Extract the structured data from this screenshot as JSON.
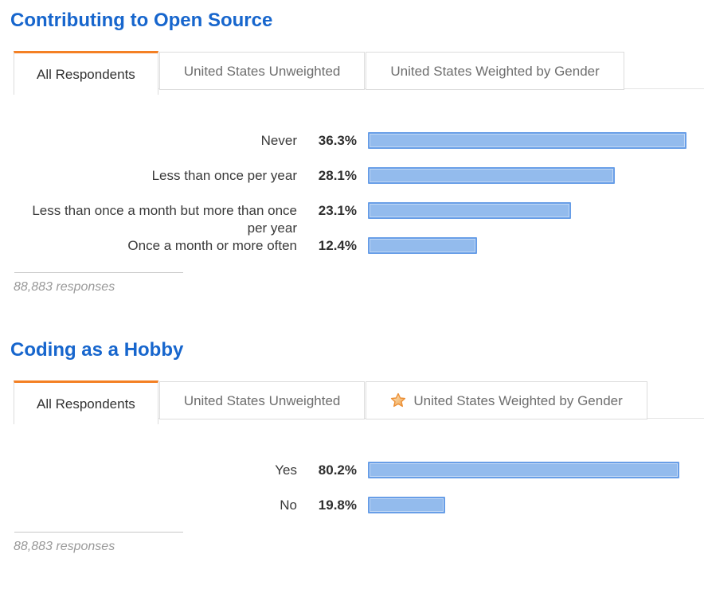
{
  "colors": {
    "heading_blue": "#1766cd",
    "tab_orange": "#f48024",
    "bar_fill": "#93bbed",
    "bar_border": "#689ee7"
  },
  "sections": [
    {
      "heading": "Contributing to Open Source",
      "tabs": [
        {
          "label": "All Respondents",
          "active": true
        },
        {
          "label": "United States Unweighted",
          "active": false
        },
        {
          "label": "United States Weighted by Gender",
          "active": false
        }
      ],
      "responses_note": "88,883 responses"
    },
    {
      "heading": "Coding as a Hobby",
      "tabs": [
        {
          "label": "All Respondents",
          "active": true
        },
        {
          "label": "United States Unweighted",
          "active": false
        },
        {
          "label": "United States Weighted by Gender",
          "active": false,
          "icon": "star-icon"
        }
      ],
      "responses_note": "88,883 responses"
    }
  ],
  "chart_data": [
    {
      "type": "bar",
      "orientation": "horizontal",
      "title": "Contributing to Open Source",
      "categories": [
        "Never",
        "Less than once per year",
        "Less than once a month but more than once per year",
        "Once a month or more often"
      ],
      "values": [
        36.3,
        28.1,
        23.1,
        12.4
      ],
      "value_labels": [
        "36.3%",
        "28.1%",
        "23.1%",
        "12.4%"
      ],
      "xlim": [
        0,
        38.3
      ],
      "grid": false,
      "legend": "none",
      "annotation": "88,883 responses"
    },
    {
      "type": "bar",
      "orientation": "horizontal",
      "title": "Coding as a Hobby",
      "categories": [
        "Yes",
        "No"
      ],
      "values": [
        80.2,
        19.8
      ],
      "value_labels": [
        "80.2%",
        "19.8%"
      ],
      "xlim": [
        0,
        86.5
      ],
      "grid": false,
      "legend": "none",
      "annotation": "88,883 responses"
    }
  ]
}
